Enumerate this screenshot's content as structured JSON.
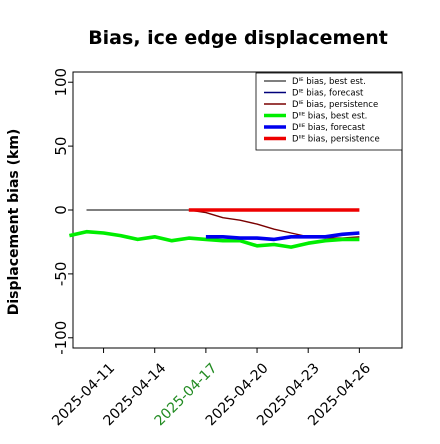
{
  "chart_data": {
    "type": "line",
    "title": "Bias, ice edge displacement",
    "xlabel": "",
    "ylabel": "Displacement bias (km)",
    "ylim": [
      -108,
      108
    ],
    "xlim": [
      "2025-04-09T05:00",
      "2025-04-28T12:00"
    ],
    "grid": false,
    "legend_position": "top-right",
    "x_ticks": [
      "2025-04-11",
      "2025-04-14",
      "2025-04-17",
      "2025-04-20",
      "2025-04-23",
      "2025-04-26"
    ],
    "x_tick_highlight": "2025-04-17",
    "y_ticks": [
      100,
      50,
      0,
      -50,
      -100
    ],
    "series": [
      {
        "name": "Dᴵᴱ bias, best est.",
        "color": "#555555",
        "style": "thin",
        "x": [
          "2025-04-10",
          "2025-04-16"
        ],
        "y": [
          0,
          0
        ]
      },
      {
        "name": "Dᴵᴱ bias, forecast",
        "color": "#00007a",
        "style": "thin",
        "x": [],
        "y": []
      },
      {
        "name": "Dᴵᴱ bias, persistence",
        "color": "#7a0000",
        "style": "thin",
        "x": [
          "2025-04-16",
          "2025-04-17",
          "2025-04-18",
          "2025-04-19",
          "2025-04-20",
          "2025-04-21",
          "2025-04-22",
          "2025-04-23",
          "2025-04-24",
          "2025-04-25",
          "2025-04-26"
        ],
        "y": [
          0,
          -2,
          -6,
          -8,
          -11,
          -15,
          -18,
          -21,
          -22,
          -22,
          -21
        ]
      },
      {
        "name": "Dᴵᴵᴱ bias, best est.",
        "color": "#00ee00",
        "style": "thick",
        "x": [
          "2025-04-09",
          "2025-04-10",
          "2025-04-11",
          "2025-04-12",
          "2025-04-13",
          "2025-04-14",
          "2025-04-15",
          "2025-04-16",
          "2025-04-17",
          "2025-04-18",
          "2025-04-19",
          "2025-04-20",
          "2025-04-21",
          "2025-04-22",
          "2025-04-23",
          "2025-04-24",
          "2025-04-25",
          "2025-04-26"
        ],
        "y": [
          -20,
          -17,
          -18,
          -20,
          -23,
          -21,
          -24,
          -22,
          -23,
          -24,
          -24,
          -28,
          -27,
          -29,
          -26,
          -24,
          -23,
          -23
        ]
      },
      {
        "name": "Dᴵᴵᴱ bias, forecast",
        "color": "#0000ee",
        "style": "thick",
        "x": [
          "2025-04-17",
          "2025-04-18",
          "2025-04-19",
          "2025-04-20",
          "2025-04-21",
          "2025-04-22",
          "2025-04-23",
          "2025-04-24",
          "2025-04-25",
          "2025-04-26"
        ],
        "y": [
          -21,
          -21,
          -22,
          -22,
          -23,
          -21,
          -21,
          -21,
          -19,
          -18
        ]
      },
      {
        "name": "Dᴵᴵᴱ bias, persistence",
        "color": "#ee0000",
        "style": "thick",
        "x": [
          "2025-04-16",
          "2025-04-26"
        ],
        "y": [
          0,
          0
        ]
      }
    ]
  }
}
